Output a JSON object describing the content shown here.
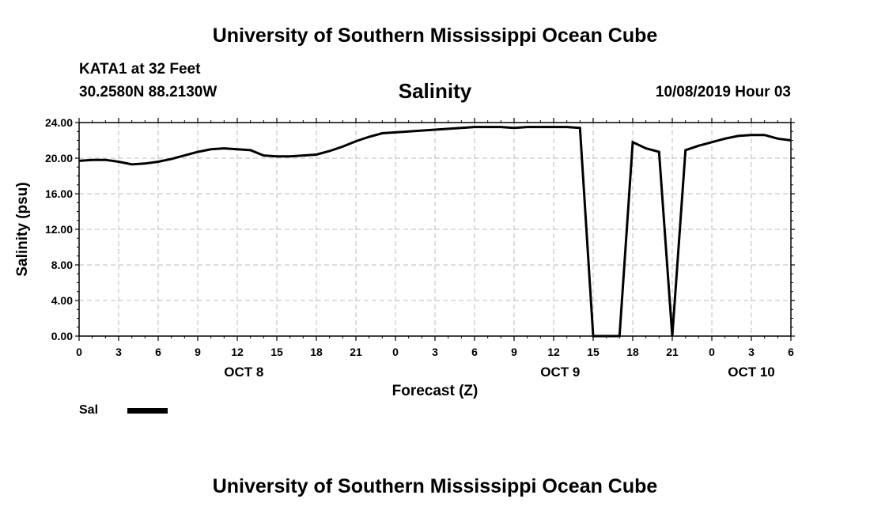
{
  "header": {
    "title": "University of Southern Mississippi Ocean Cube",
    "station": "KATA1 at 32 Feet",
    "coords": "30.2580N 88.2130W",
    "timestamp": "10/08/2019 Hour 03"
  },
  "footer": {
    "title": "University of Southern Mississippi Ocean Cube"
  },
  "legend": {
    "label": "Sal"
  },
  "chart_data": {
    "type": "line",
    "title": "Salinity",
    "xlabel": "Forecast (Z)",
    "ylabel": "Salinity (psu)",
    "xlim": [
      0,
      54
    ],
    "ylim": [
      0,
      24
    ],
    "grid": true,
    "legend_position": "bottom-left",
    "y_ticks": [
      {
        "value": 0,
        "label": "0.00"
      },
      {
        "value": 4,
        "label": "4.00"
      },
      {
        "value": 8,
        "label": "8.00"
      },
      {
        "value": 12,
        "label": "12.00"
      },
      {
        "value": 16,
        "label": "16.00"
      },
      {
        "value": 20,
        "label": "20.00"
      },
      {
        "value": 24,
        "label": "24.00"
      }
    ],
    "x_ticks": [
      {
        "value": 0,
        "label": "0"
      },
      {
        "value": 3,
        "label": "3"
      },
      {
        "value": 6,
        "label": "6"
      },
      {
        "value": 9,
        "label": "9"
      },
      {
        "value": 12,
        "label": "12"
      },
      {
        "value": 15,
        "label": "15"
      },
      {
        "value": 18,
        "label": "18"
      },
      {
        "value": 21,
        "label": "21"
      },
      {
        "value": 24,
        "label": "0"
      },
      {
        "value": 27,
        "label": "3"
      },
      {
        "value": 30,
        "label": "6"
      },
      {
        "value": 33,
        "label": "9"
      },
      {
        "value": 36,
        "label": "12"
      },
      {
        "value": 39,
        "label": "15"
      },
      {
        "value": 42,
        "label": "18"
      },
      {
        "value": 45,
        "label": "21"
      },
      {
        "value": 48,
        "label": "0"
      },
      {
        "value": 51,
        "label": "3"
      },
      {
        "value": 54,
        "label": "6"
      }
    ],
    "date_labels": [
      {
        "value": 12.5,
        "label": "OCT 8"
      },
      {
        "value": 36.5,
        "label": "OCT 9"
      },
      {
        "value": 51,
        "label": "OCT 10"
      }
    ],
    "series": [
      {
        "name": "Sal",
        "color": "#000000",
        "x": [
          0,
          1,
          2,
          3,
          4,
          5,
          6,
          7,
          8,
          9,
          10,
          11,
          12,
          13,
          14,
          15,
          16,
          17,
          18,
          19,
          20,
          21,
          22,
          23,
          24,
          25,
          26,
          27,
          28,
          29,
          30,
          31,
          32,
          33,
          34,
          35,
          36,
          37,
          38,
          39,
          40,
          41,
          42,
          43,
          44,
          45,
          46,
          47,
          48,
          49,
          50,
          51,
          52,
          53,
          54
        ],
        "y": [
          19.7,
          19.8,
          19.8,
          19.6,
          19.3,
          19.4,
          19.6,
          19.9,
          20.3,
          20.7,
          21.0,
          21.1,
          21.0,
          20.9,
          20.3,
          20.2,
          20.2,
          20.3,
          20.4,
          20.8,
          21.3,
          21.9,
          22.4,
          22.8,
          22.9,
          23.0,
          23.1,
          23.2,
          23.3,
          23.4,
          23.5,
          23.5,
          23.5,
          23.4,
          23.5,
          23.5,
          23.5,
          23.5,
          23.4,
          0,
          0,
          0,
          21.8,
          21.1,
          20.7,
          0,
          20.9,
          21.4,
          21.8,
          22.2,
          22.5,
          22.6,
          22.6,
          22.2,
          22.0
        ]
      }
    ]
  }
}
